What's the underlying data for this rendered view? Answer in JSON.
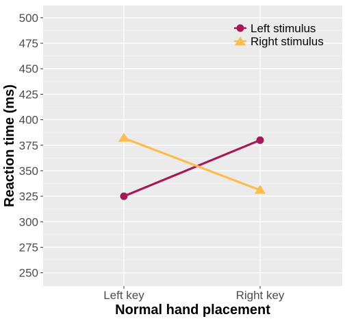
{
  "chart_data": {
    "type": "line",
    "title": "",
    "xlabel": "Normal hand placement",
    "ylabel": "Reaction time (ms)",
    "categories": [
      "Left key",
      "Right key"
    ],
    "ylim": [
      237,
      512
    ],
    "yticks": [
      250,
      275,
      300,
      325,
      350,
      375,
      400,
      425,
      450,
      475,
      500
    ],
    "grid": true,
    "legend_position": "top-right",
    "series": [
      {
        "name": "Left stimulus",
        "values": [
          325,
          380
        ],
        "color": "#a31a54",
        "marker": "circle"
      },
      {
        "name": "Right stimulus",
        "values": [
          382,
          331
        ],
        "color": "#fcbd4f",
        "marker": "triangle"
      }
    ]
  }
}
